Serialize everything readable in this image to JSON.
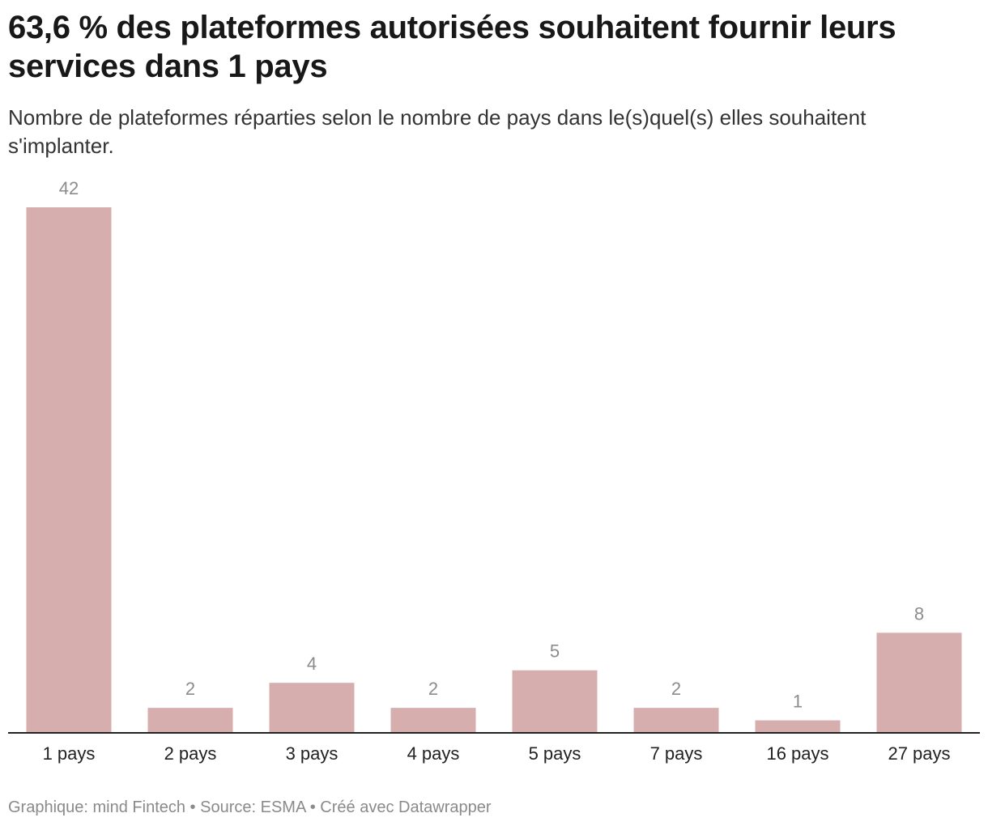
{
  "header": {
    "title": "63,6 % des plateformes autorisées souhaitent fournir leurs services dans 1 pays",
    "subtitle": "Nombre de plateformes réparties selon le nombre de pays dans le(s)quel(s) elles souhaitent s'implanter."
  },
  "footer": {
    "credit": "Graphique: mind Fintech • Source: ESMA • Créé avec Datawrapper"
  },
  "colors": {
    "bar": "#d7aeae",
    "axis": "#222222",
    "value_label": "#8c8c8c"
  },
  "chart_data": {
    "type": "bar",
    "title": "63,6 % des plateformes autorisées souhaitent fournir leurs services dans 1 pays",
    "subtitle": "Nombre de plateformes réparties selon le nombre de pays dans le(s)quel(s) elles souhaitent s'implanter.",
    "categories": [
      "1 pays",
      "2 pays",
      "3 pays",
      "4 pays",
      "5 pays",
      "7 pays",
      "16 pays",
      "27 pays"
    ],
    "values": [
      42,
      2,
      4,
      2,
      5,
      2,
      1,
      8
    ],
    "ylim": [
      0,
      42
    ],
    "grid": false,
    "legend": "none"
  }
}
